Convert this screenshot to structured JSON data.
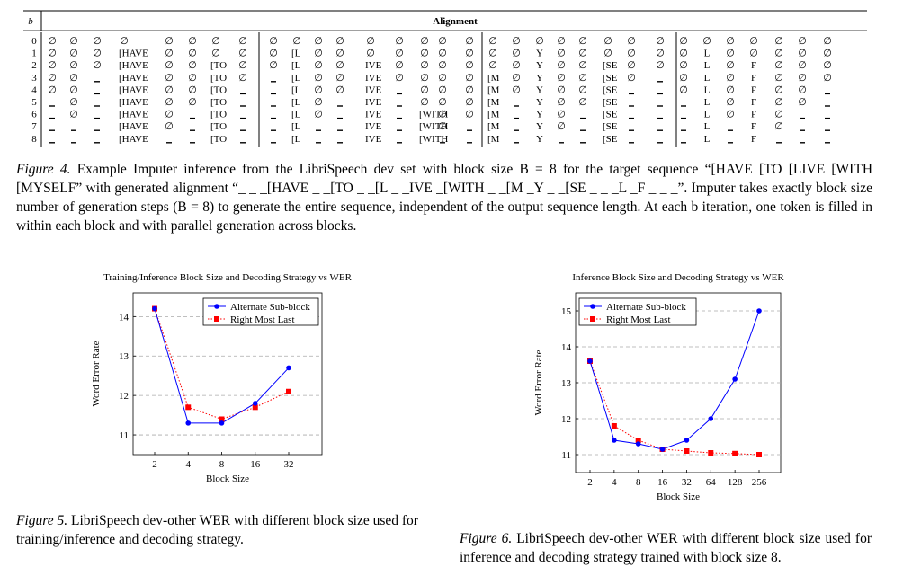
{
  "alignment_table": {
    "b_header": "b",
    "title": "Alignment",
    "rows": [
      {
        "b": "0",
        "cells": [
          "∅",
          "∅",
          "∅",
          "∅",
          "∅",
          "∅",
          "∅",
          "∅",
          "∅",
          "∅",
          "∅",
          "∅",
          "∅",
          "∅",
          "∅",
          "∅",
          "∅",
          "∅",
          "∅",
          "∅",
          "∅",
          "∅",
          "∅",
          "∅",
          "∅",
          "∅",
          "∅",
          "∅",
          "∅",
          "∅",
          "∅",
          "∅"
        ]
      },
      {
        "b": "1",
        "cells": [
          "∅",
          "∅",
          "∅",
          "[HAVE",
          "∅",
          "∅",
          "∅",
          "∅",
          "∅",
          "[L",
          "∅",
          "∅",
          "∅",
          "∅",
          "∅",
          "∅",
          "∅",
          "∅",
          "∅",
          "Y",
          "∅",
          "∅",
          "∅",
          "∅",
          "∅",
          "∅",
          "L",
          "∅",
          "∅",
          "∅",
          "∅",
          "∅"
        ]
      },
      {
        "b": "2",
        "cells": [
          "∅",
          "∅",
          "∅",
          "[HAVE",
          "∅",
          "∅",
          "[TO",
          "∅",
          "∅",
          "[L",
          "∅",
          "∅",
          "IVE",
          "∅",
          "∅",
          "∅",
          "∅",
          "∅",
          "∅",
          "Y",
          "∅",
          "∅",
          "[SE",
          "∅",
          "∅",
          "∅",
          "L",
          "∅",
          "F",
          "∅",
          "∅",
          "∅"
        ]
      },
      {
        "b": "3",
        "cells": [
          "∅",
          "∅",
          "_",
          "[HAVE",
          "∅",
          "∅",
          "[TO",
          "∅",
          "_",
          "[L",
          "∅",
          "∅",
          "IVE",
          "∅",
          "∅",
          "∅",
          "∅",
          "[M",
          "∅",
          "Y",
          "∅",
          "∅",
          "[SE",
          "∅",
          "_",
          "∅",
          "L",
          "∅",
          "F",
          "∅",
          "∅",
          "∅"
        ]
      },
      {
        "b": "4",
        "cells": [
          "∅",
          "∅",
          "_",
          "[HAVE",
          "∅",
          "∅",
          "[TO",
          "_",
          "_",
          "[L",
          "∅",
          "∅",
          "IVE",
          "_",
          "∅",
          "∅",
          "∅",
          "[M",
          "∅",
          "Y",
          "∅",
          "∅",
          "[SE",
          "_",
          "_",
          "∅",
          "L",
          "∅",
          "F",
          "∅",
          "∅",
          "_"
        ]
      },
      {
        "b": "5",
        "cells": [
          "_",
          "∅",
          "_",
          "[HAVE",
          "∅",
          "∅",
          "[TO",
          "_",
          "_",
          "[L",
          "∅",
          "_",
          "IVE",
          "_",
          "∅",
          "∅",
          "∅",
          "[M",
          "_",
          "Y",
          "∅",
          "∅",
          "[SE",
          "_",
          "_",
          "_",
          "L",
          "∅",
          "F",
          "∅",
          "∅",
          "_"
        ]
      },
      {
        "b": "6",
        "cells": [
          "_",
          "∅",
          "_",
          "[HAVE",
          "∅",
          "_",
          "[TO",
          "_",
          "_",
          "[L",
          "∅",
          "_",
          "IVE",
          "_",
          "[WITH",
          "∅",
          "∅",
          "[M",
          "_",
          "Y",
          "∅",
          "_",
          "[SE",
          "_",
          "_",
          "_",
          "L",
          "∅",
          "F",
          "∅",
          "_",
          "_"
        ]
      },
      {
        "b": "7",
        "cells": [
          "_",
          "_",
          "_",
          "[HAVE",
          "∅",
          "_",
          "[TO",
          "_",
          "_",
          "[L",
          "_",
          "_",
          "IVE",
          "_",
          "[WITH",
          "∅",
          "_",
          "[M",
          "_",
          "Y",
          "∅",
          "_",
          "[SE",
          "_",
          "_",
          "_",
          "L",
          "_",
          "F",
          "∅",
          "_",
          "_"
        ]
      },
      {
        "b": "8",
        "cells": [
          "_",
          "_",
          "_",
          "[HAVE",
          "_",
          "_",
          "[TO",
          "_",
          "_",
          "[L",
          "_",
          "_",
          "IVE",
          "_",
          "[WITH",
          "_",
          "_",
          "[M",
          "_",
          "Y",
          "_",
          "_",
          "[SE",
          "_",
          "_",
          "_",
          "L",
          "_",
          "F",
          "_",
          "_",
          "_"
        ]
      }
    ]
  },
  "fig4": {
    "label": "Figure 4.",
    "text": "Example Imputer inference from the LibriSpeech dev set with block size B = 8 for the target sequence “[HAVE [TO [LIVE [WITH [MYSELF” with generated alignment “_ _ _[HAVE _ _[TO _ _[L _ _IVE _[WITH _ _[M _Y _ _[SE _ _ _L _F _ _ _”. Imputer takes exactly block size number of generation steps (B = 8) to generate the entire sequence, independent of the output sequence length. At each b iteration, one token is filled in within each block and with parallel generation across blocks."
  },
  "fig5": {
    "label": "Figure 5.",
    "text": "LibriSpeech dev-other WER with different block size used for training/inference and decoding strategy."
  },
  "fig6": {
    "label": "Figure 6.",
    "text": "LibriSpeech dev-other WER with different block size used for inference and decoding strategy trained with block size 8."
  },
  "chart_data": [
    {
      "type": "line",
      "title": "Training/Inference Block Size and Decoding Strategy vs WER",
      "xlabel": "Block Size",
      "ylabel": "Word Error Rate",
      "x": [
        "2",
        "4",
        "8",
        "16",
        "32"
      ],
      "ylim": [
        10.5,
        14.6
      ],
      "yticks": [
        "11",
        "12",
        "13",
        "14"
      ],
      "grid": "horizontal dashed",
      "legend": "top-right",
      "series": [
        {
          "name": "Alternate Sub-block",
          "color": "#0000ff",
          "marker": "circle",
          "style": "solid",
          "values": [
            14.2,
            11.3,
            11.3,
            11.8,
            12.7
          ]
        },
        {
          "name": "Right Most Last",
          "color": "#ff0000",
          "marker": "square",
          "style": "dotted",
          "values": [
            14.2,
            11.7,
            11.4,
            11.7,
            12.1
          ]
        }
      ]
    },
    {
      "type": "line",
      "title": "Inference Block Size and Decoding Strategy vs WER",
      "xlabel": "Block Size",
      "ylabel": "Word Error Rate",
      "x": [
        "2",
        "4",
        "8",
        "16",
        "32",
        "64",
        "128",
        "256"
      ],
      "ylim": [
        10.5,
        15.5
      ],
      "yticks": [
        "11",
        "12",
        "13",
        "14",
        "15"
      ],
      "grid": "horizontal dashed",
      "legend": "top-left",
      "series": [
        {
          "name": "Alternate Sub-block",
          "color": "#0000ff",
          "marker": "circle",
          "style": "solid",
          "values": [
            13.6,
            11.4,
            11.3,
            11.15,
            11.4,
            12.0,
            13.1,
            15.0
          ]
        },
        {
          "name": "Right Most Last",
          "color": "#ff0000",
          "marker": "square",
          "style": "dotted",
          "values": [
            13.6,
            11.8,
            11.4,
            11.15,
            11.1,
            11.05,
            11.03,
            11.0
          ]
        }
      ]
    }
  ]
}
